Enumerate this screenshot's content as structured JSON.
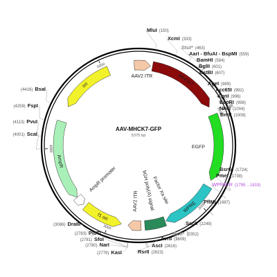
{
  "plasmid": {
    "name": "AAV-MHCK7-GFP",
    "length_label": "5375 bp",
    "length": 5375
  },
  "ticks": [
    {
      "pos": 1000,
      "label": "1000"
    },
    {
      "pos": 2000,
      "label": "2000"
    },
    {
      "pos": 3000,
      "label": "3000"
    },
    {
      "pos": 4000,
      "label": "4000"
    },
    {
      "pos": 5000,
      "label": "5000"
    }
  ],
  "features": [
    {
      "id": "aav2-itr-1",
      "label": "AAV2 ITR",
      "start": 5330,
      "end": 130,
      "color": "#f5c8a8",
      "direction": "forward",
      "label_mode": "outside"
    },
    {
      "id": "mhck7",
      "label": "MHCK7",
      "start": 150,
      "end": 920,
      "color": "#8b0a0a",
      "direction": "forward",
      "label_mode": "on"
    },
    {
      "id": "egfp",
      "label": "EGFP",
      "start": 1010,
      "end": 1730,
      "color": "#22dd22",
      "direction": "forward",
      "label_mode": "inside"
    },
    {
      "id": "wpre",
      "label": "WPRE",
      "start": 1800,
      "end": 2390,
      "color": "#2cc4c4",
      "direction": "forward",
      "label_mode": "on"
    },
    {
      "id": "bgh",
      "label": "bGH poly(A) signal",
      "start": 2400,
      "end": 2620,
      "color": "#2a8a5a",
      "direction": "none",
      "label_mode": "inside"
    },
    {
      "id": "aav2-itr-2",
      "label": "AAV2 ITR",
      "start": 2660,
      "end": 2800,
      "color": "#f5c8a8",
      "direction": "forward",
      "label_mode": "inside"
    },
    {
      "id": "f1-ori",
      "label": "f1 ori",
      "start": 2870,
      "end": 3300,
      "color": "#f2f22a",
      "direction": "reverse",
      "label_mode": "on"
    },
    {
      "id": "ampr-promoter",
      "label": "AmpR promoter",
      "start": 3330,
      "end": 3430,
      "color": "#ffffff",
      "direction": "reverse",
      "label_mode": "inside"
    },
    {
      "id": "ampr",
      "label": "AmpR",
      "start": 3430,
      "end": 4290,
      "color": "#a8f0b8",
      "direction": "reverse",
      "label_mode": "on"
    },
    {
      "id": "ori",
      "label": "ori",
      "start": 4460,
      "end": 5050,
      "color": "#f2f22a",
      "direction": "reverse",
      "label_mode": "on"
    }
  ],
  "inner_labels": [
    {
      "text": "Factor Xa site",
      "pos": 2300
    }
  ],
  "sites_right": [
    {
      "name": "MluI",
      "pos_label": "(150)",
      "pos": 150,
      "style": "normal"
    },
    {
      "name": "XcmI",
      "pos_label": "(333)",
      "pos": 333,
      "style": "normal"
    },
    {
      "name": "StuI*",
      "pos_label": "(463)",
      "pos": 463,
      "style": "muted"
    },
    {
      "name": "AarI - BfuAI - BspMI",
      "pos_label": "(559)",
      "pos": 559,
      "style": "normal"
    },
    {
      "name": "BamHI",
      "pos_label": "(584)",
      "pos": 584,
      "style": "normal"
    },
    {
      "name": "BglII",
      "pos_label": "(601)",
      "pos": 601,
      "style": "normal"
    },
    {
      "name": "BstBI",
      "pos_label": "(607)",
      "pos": 607,
      "style": "normal"
    },
    {
      "name": "AgeI",
      "pos_label": "(989)",
      "pos": 989,
      "style": "normal"
    },
    {
      "name": "Acc65I",
      "pos_label": "(992)",
      "pos": 992,
      "style": "normal"
    },
    {
      "name": "KpnI",
      "pos_label": "(996)",
      "pos": 996,
      "style": "normal"
    },
    {
      "name": "EcoRI",
      "pos_label": "(998)",
      "pos": 998,
      "style": "normal"
    },
    {
      "name": "NheI",
      "pos_label": "(1004)",
      "pos": 1004,
      "style": "normal"
    },
    {
      "name": "BmtI",
      "pos_label": "(1008)",
      "pos": 1008,
      "style": "normal"
    },
    {
      "name": "BsrGI",
      "pos_label": "(1724)",
      "pos": 1724,
      "style": "normal"
    },
    {
      "name": "PmeI",
      "pos_label": "(1738)",
      "pos": 1738,
      "style": "normal"
    },
    {
      "name": "WPRE-R",
      "pos_label": "(1799 .. 1819)",
      "pos": 1809,
      "style": "purple"
    },
    {
      "name": "PflMI",
      "pos_label": "(1987)",
      "pos": 1987,
      "style": "normal"
    },
    {
      "name": "SacII",
      "pos_label": "(2249)",
      "pos": 2249,
      "style": "normal"
    },
    {
      "name": "BclI*",
      "pos_label": "(2352)",
      "pos": 2352,
      "style": "muted"
    }
  ],
  "sites_bottom": [
    {
      "name": "AvrII",
      "pos_label": "(2609)",
      "pos": 2609,
      "style": "normal"
    },
    {
      "name": "AscI",
      "pos_label": "(2616)",
      "pos": 2616,
      "style": "normal"
    },
    {
      "name": "RsrII",
      "pos_label": "(2623)",
      "pos": 2623,
      "style": "normal"
    },
    {
      "name": "KasI",
      "pos_label": "(2779)",
      "pos": 2779,
      "style": "normal"
    },
    {
      "name": "NarI",
      "pos_label": "(2780)",
      "pos": 2780,
      "style": "normal"
    },
    {
      "name": "SfoI",
      "pos_label": "(2781)",
      "pos": 2781,
      "style": "normal"
    },
    {
      "name": "PluTI",
      "pos_label": "(2783)",
      "pos": 2783,
      "style": "normal"
    },
    {
      "name": "DraIII",
      "pos_label": "(3086)",
      "pos": 3086,
      "style": "normal"
    }
  ],
  "sites_left": [
    {
      "name": "BsaI",
      "pos_label": "(4416)",
      "pos": 4416,
      "style": "normal"
    },
    {
      "name": "FspI",
      "pos_label": "(4259)",
      "pos": 4259,
      "style": "normal"
    },
    {
      "name": "PvuI",
      "pos_label": "(4113)",
      "pos": 4113,
      "style": "normal"
    },
    {
      "name": "ScaI",
      "pos_label": "(4001)",
      "pos": 4001,
      "style": "normal"
    }
  ]
}
